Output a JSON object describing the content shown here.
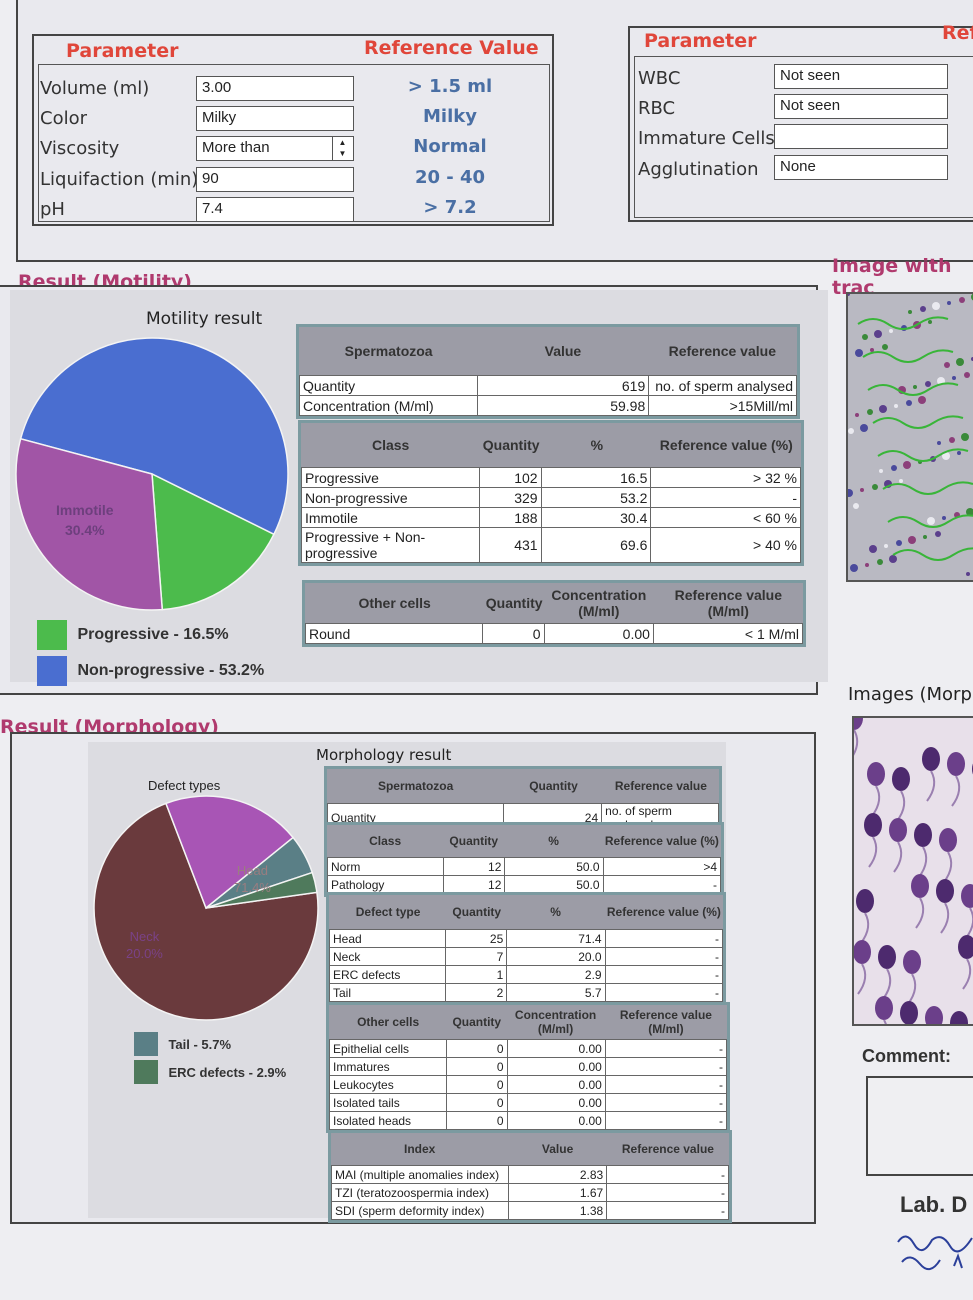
{
  "semen": {
    "param_header": "Parameter",
    "ref_header": "Reference Value",
    "rows": [
      {
        "label": "Volume (ml)",
        "value": "3.00",
        "ref": "> 1.5 ml"
      },
      {
        "label": "Color",
        "value": "Milky",
        "ref": "Milky"
      },
      {
        "label": "Viscosity",
        "value": "More than",
        "ref": "Normal"
      },
      {
        "label": "Liquifaction (min)",
        "value": "90",
        "ref": "20 - 40"
      },
      {
        "label": "pH",
        "value": "7.4",
        "ref": "> 7.2"
      }
    ]
  },
  "cells": {
    "param_header": "Parameter",
    "ref_header": "Ref",
    "rows": [
      {
        "label": "WBC",
        "value": "Not seen"
      },
      {
        "label": "RBC",
        "value": "Not seen"
      },
      {
        "label": "Immature Cells",
        "value": ""
      },
      {
        "label": "Agglutination",
        "value": "None"
      }
    ]
  },
  "motility": {
    "section_title": "Result (Motility)",
    "chart_title": "Motility result",
    "pie_label": "Immotile",
    "pie_label_value": "30.4%",
    "legend": [
      {
        "text": "Progressive - 16.5%",
        "color": "#4cbb4c"
      },
      {
        "text": "Non-progressive - 53.2%",
        "color": "#4a6ed0"
      }
    ],
    "sperm_table": {
      "headers": [
        "Spermatozoa",
        "Value",
        "Reference value"
      ],
      "rows": [
        [
          "Quantity",
          "619",
          "no. of sperm analysed"
        ],
        [
          "Concentration (M/ml)",
          "59.98",
          ">15Mill/ml"
        ]
      ]
    },
    "class_table": {
      "headers": [
        "Class",
        "Quantity",
        "%",
        "Reference value (%)"
      ],
      "rows": [
        [
          "Progressive",
          "102",
          "16.5",
          "> 32 %"
        ],
        [
          "Non-progressive",
          "329",
          "53.2",
          "-"
        ],
        [
          "Immotile",
          "188",
          "30.4",
          "< 60 %"
        ],
        [
          "Progressive + Non-progressive",
          "431",
          "69.6",
          "> 40 %"
        ]
      ]
    },
    "other_table": {
      "headers": [
        "Other cells",
        "Quantity",
        "Concentration (M/ml)",
        "Reference value (M/ml)"
      ],
      "rows": [
        [
          "Round",
          "0",
          "0.00",
          "< 1 M/ml"
        ]
      ]
    }
  },
  "tracking": {
    "title": "Image with trac"
  },
  "morphology": {
    "section_title": "Result (Morphology)",
    "chart_title": "Morphology result",
    "defect_title": "Defect types",
    "pie_labels": [
      {
        "name": "Head",
        "value": "71.4%"
      },
      {
        "name": "Neck",
        "value": "20.0%"
      }
    ],
    "legend": [
      {
        "text": "Tail - 5.7%",
        "color": "#5a7f86"
      },
      {
        "text": "ERC defects - 2.9%",
        "color": "#4f7a5c"
      }
    ],
    "sperm_table": {
      "headers": [
        "Spermatozoa",
        "Quantity",
        "Reference value"
      ],
      "rows": [
        [
          "Quantity",
          "24",
          "no. of sperm analysed"
        ]
      ]
    },
    "class_table": {
      "headers": [
        "Class",
        "Quantity",
        "%",
        "Reference value (%)"
      ],
      "rows": [
        [
          "Norm",
          "12",
          "50.0",
          ">4"
        ],
        [
          "Pathology",
          "12",
          "50.0",
          "-"
        ]
      ]
    },
    "defect_table": {
      "headers": [
        "Defect type",
        "Quantity",
        "%",
        "Reference value (%)"
      ],
      "rows": [
        [
          "Head",
          "25",
          "71.4",
          "-"
        ],
        [
          "Neck",
          "7",
          "20.0",
          "-"
        ],
        [
          "ERC defects",
          "1",
          "2.9",
          "-"
        ],
        [
          "Tail",
          "2",
          "5.7",
          "-"
        ]
      ]
    },
    "other_table": {
      "headers": [
        "Other cells",
        "Quantity",
        "Concentration (M/ml)",
        "Reference value (M/ml)"
      ],
      "rows": [
        [
          "Epithelial cells",
          "0",
          "0.00",
          "-"
        ],
        [
          "Immatures",
          "0",
          "0.00",
          "-"
        ],
        [
          "Leukocytes",
          "0",
          "0.00",
          "-"
        ],
        [
          "Isolated tails",
          "0",
          "0.00",
          "-"
        ],
        [
          "Isolated heads",
          "0",
          "0.00",
          "-"
        ]
      ]
    },
    "index_table": {
      "headers": [
        "Index",
        "Value",
        "Reference value"
      ],
      "rows": [
        [
          "MAI (multiple anomalies index)",
          "2.83",
          "-"
        ],
        [
          "TZI (teratozoospermia index)",
          "1.67",
          "-"
        ],
        [
          "SDI (sperm deformity index)",
          "1.38",
          "-"
        ]
      ]
    }
  },
  "morph_images": {
    "title": "Images (Morp"
  },
  "comment": {
    "label": "Comment:"
  },
  "lab": {
    "label": "Lab. D"
  },
  "chart_data": [
    {
      "type": "pie",
      "title": "Motility result",
      "labels": [
        "Non-progressive",
        "Progressive",
        "Immotile"
      ],
      "values": [
        53.2,
        16.5,
        30.4
      ],
      "colors": [
        "#4a6ed0",
        "#4cbb4c",
        "#a155a6"
      ]
    },
    {
      "type": "pie",
      "title": "Defect types",
      "labels": [
        "Head",
        "Neck",
        "Tail",
        "ERC defects"
      ],
      "values": [
        71.4,
        20.0,
        5.7,
        2.9
      ],
      "colors": [
        "#6a3a3d",
        "#a855b5",
        "#5a7f86",
        "#4f7a5c"
      ]
    }
  ]
}
